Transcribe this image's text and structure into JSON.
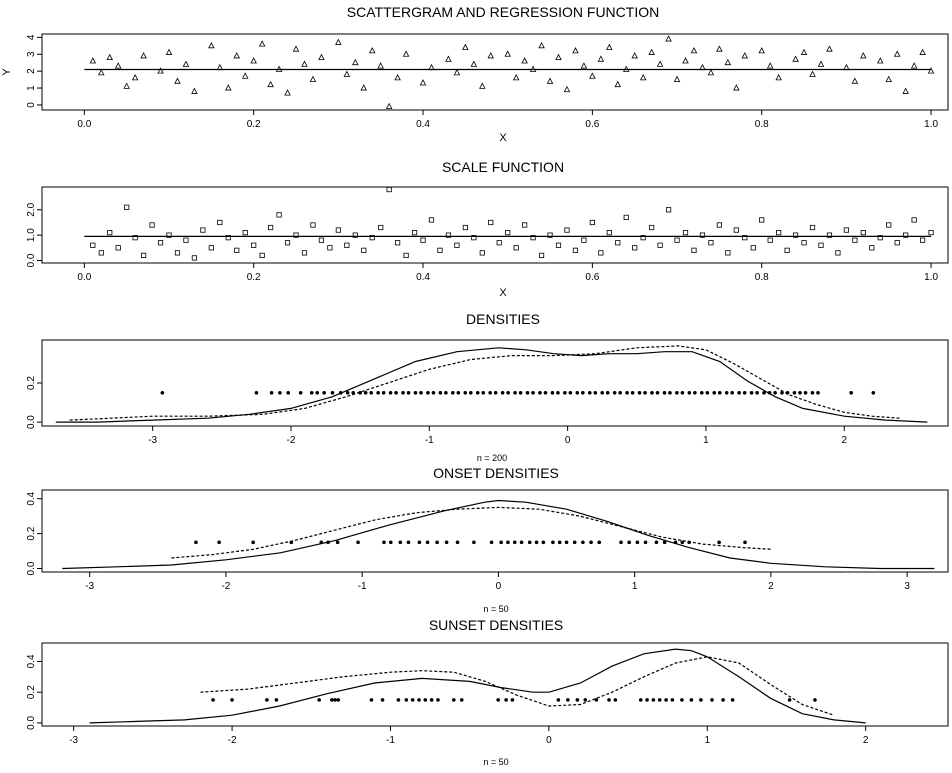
{
  "chart_data": [
    {
      "type": "scatter",
      "title": "SCATTERGRAM AND REGRESSION FUNCTION",
      "xlabel": "X",
      "ylabel": "Y",
      "xlim": [
        -0.05,
        1.02
      ],
      "ylim": [
        -0.3,
        4.2
      ],
      "xticks": [
        "0.0",
        "0.2",
        "0.4",
        "0.6",
        "0.8",
        "1.0"
      ],
      "yticks": [
        "0",
        "1",
        "2",
        "3",
        "4"
      ],
      "marker": "triangle",
      "regression_line": [
        [
          0.0,
          2.1
        ],
        [
          1.0,
          2.1
        ]
      ],
      "points": [
        [
          0.01,
          2.6
        ],
        [
          0.02,
          1.9
        ],
        [
          0.03,
          2.8
        ],
        [
          0.04,
          2.3
        ],
        [
          0.05,
          1.1
        ],
        [
          0.06,
          1.6
        ],
        [
          0.07,
          2.9
        ],
        [
          0.09,
          2.0
        ],
        [
          0.1,
          3.1
        ],
        [
          0.11,
          1.4
        ],
        [
          0.12,
          2.4
        ],
        [
          0.13,
          0.8
        ],
        [
          0.15,
          3.5
        ],
        [
          0.16,
          2.2
        ],
        [
          0.17,
          1.0
        ],
        [
          0.18,
          2.9
        ],
        [
          0.19,
          1.7
        ],
        [
          0.2,
          2.6
        ],
        [
          0.21,
          3.6
        ],
        [
          0.22,
          1.2
        ],
        [
          0.23,
          2.1
        ],
        [
          0.24,
          0.7
        ],
        [
          0.25,
          3.3
        ],
        [
          0.26,
          2.4
        ],
        [
          0.27,
          1.5
        ],
        [
          0.28,
          2.8
        ],
        [
          0.3,
          3.7
        ],
        [
          0.31,
          1.8
        ],
        [
          0.32,
          2.5
        ],
        [
          0.33,
          1.0
        ],
        [
          0.34,
          3.2
        ],
        [
          0.35,
          2.3
        ],
        [
          0.36,
          -0.1
        ],
        [
          0.37,
          1.6
        ],
        [
          0.38,
          3.0
        ],
        [
          0.4,
          1.3
        ],
        [
          0.41,
          2.2
        ],
        [
          0.43,
          2.7
        ],
        [
          0.44,
          1.9
        ],
        [
          0.45,
          3.4
        ],
        [
          0.46,
          2.4
        ],
        [
          0.47,
          1.1
        ],
        [
          0.48,
          2.9
        ],
        [
          0.5,
          3.0
        ],
        [
          0.51,
          1.6
        ],
        [
          0.52,
          2.6
        ],
        [
          0.53,
          2.1
        ],
        [
          0.54,
          3.5
        ],
        [
          0.55,
          1.4
        ],
        [
          0.56,
          2.8
        ],
        [
          0.57,
          0.9
        ],
        [
          0.58,
          3.2
        ],
        [
          0.59,
          2.3
        ],
        [
          0.6,
          1.7
        ],
        [
          0.61,
          2.7
        ],
        [
          0.62,
          3.4
        ],
        [
          0.63,
          1.2
        ],
        [
          0.64,
          2.1
        ],
        [
          0.65,
          2.9
        ],
        [
          0.66,
          1.6
        ],
        [
          0.67,
          3.1
        ],
        [
          0.68,
          2.4
        ],
        [
          0.69,
          3.9
        ],
        [
          0.7,
          1.5
        ],
        [
          0.71,
          2.6
        ],
        [
          0.72,
          3.2
        ],
        [
          0.73,
          2.2
        ],
        [
          0.74,
          1.9
        ],
        [
          0.75,
          3.3
        ],
        [
          0.76,
          2.5
        ],
        [
          0.77,
          1.0
        ],
        [
          0.78,
          2.9
        ],
        [
          0.8,
          3.2
        ],
        [
          0.81,
          2.3
        ],
        [
          0.82,
          1.6
        ],
        [
          0.84,
          2.7
        ],
        [
          0.85,
          3.1
        ],
        [
          0.86,
          1.8
        ],
        [
          0.87,
          2.4
        ],
        [
          0.88,
          3.3
        ],
        [
          0.9,
          2.2
        ],
        [
          0.91,
          1.4
        ],
        [
          0.92,
          2.9
        ],
        [
          0.94,
          2.6
        ],
        [
          0.95,
          1.5
        ],
        [
          0.96,
          3.0
        ],
        [
          0.97,
          0.8
        ],
        [
          0.98,
          2.3
        ],
        [
          0.99,
          3.1
        ],
        [
          1.0,
          2.0
        ]
      ]
    },
    {
      "type": "scatter",
      "title": "SCALE FUNCTION",
      "xlabel": "X",
      "ylabel": "",
      "xlim": [
        -0.05,
        1.02
      ],
      "ylim": [
        -0.1,
        2.9
      ],
      "xticks": [
        "0.0",
        "0.2",
        "0.4",
        "0.6",
        "0.8",
        "1.0"
      ],
      "yticks": [
        "0.0",
        "1.0",
        "2.0"
      ],
      "marker": "square",
      "scale_line": [
        [
          0.0,
          0.95
        ],
        [
          1.0,
          0.95
        ]
      ],
      "points": [
        [
          0.01,
          0.6
        ],
        [
          0.02,
          0.3
        ],
        [
          0.03,
          1.1
        ],
        [
          0.04,
          0.5
        ],
        [
          0.05,
          2.1
        ],
        [
          0.06,
          0.9
        ],
        [
          0.07,
          0.2
        ],
        [
          0.08,
          1.4
        ],
        [
          0.09,
          0.7
        ],
        [
          0.1,
          1.0
        ],
        [
          0.11,
          0.3
        ],
        [
          0.12,
          0.8
        ],
        [
          0.13,
          0.1
        ],
        [
          0.14,
          1.2
        ],
        [
          0.15,
          0.5
        ],
        [
          0.16,
          1.5
        ],
        [
          0.17,
          0.9
        ],
        [
          0.18,
          0.4
        ],
        [
          0.19,
          1.1
        ],
        [
          0.2,
          0.6
        ],
        [
          0.21,
          0.2
        ],
        [
          0.22,
          1.3
        ],
        [
          0.23,
          1.8
        ],
        [
          0.24,
          0.7
        ],
        [
          0.25,
          1.0
        ],
        [
          0.26,
          0.3
        ],
        [
          0.27,
          1.4
        ],
        [
          0.28,
          0.8
        ],
        [
          0.29,
          0.5
        ],
        [
          0.3,
          1.2
        ],
        [
          0.31,
          0.6
        ],
        [
          0.32,
          1.0
        ],
        [
          0.33,
          0.4
        ],
        [
          0.34,
          0.9
        ],
        [
          0.35,
          1.3
        ],
        [
          0.36,
          2.8
        ],
        [
          0.37,
          0.7
        ],
        [
          0.38,
          0.2
        ],
        [
          0.39,
          1.1
        ],
        [
          0.4,
          0.8
        ],
        [
          0.41,
          1.6
        ],
        [
          0.42,
          0.4
        ],
        [
          0.43,
          1.0
        ],
        [
          0.44,
          0.6
        ],
        [
          0.45,
          1.3
        ],
        [
          0.46,
          0.9
        ],
        [
          0.47,
          0.3
        ],
        [
          0.48,
          1.5
        ],
        [
          0.49,
          0.7
        ],
        [
          0.5,
          1.1
        ],
        [
          0.51,
          0.5
        ],
        [
          0.52,
          1.4
        ],
        [
          0.53,
          0.9
        ],
        [
          0.54,
          0.2
        ],
        [
          0.55,
          1.0
        ],
        [
          0.56,
          0.6
        ],
        [
          0.57,
          1.2
        ],
        [
          0.58,
          0.4
        ],
        [
          0.59,
          0.8
        ],
        [
          0.6,
          1.5
        ],
        [
          0.61,
          0.3
        ],
        [
          0.62,
          1.1
        ],
        [
          0.63,
          0.7
        ],
        [
          0.64,
          1.7
        ],
        [
          0.65,
          0.5
        ],
        [
          0.66,
          0.9
        ],
        [
          0.67,
          1.3
        ],
        [
          0.68,
          0.6
        ],
        [
          0.69,
          2.0
        ],
        [
          0.7,
          0.8
        ],
        [
          0.71,
          1.1
        ],
        [
          0.72,
          0.4
        ],
        [
          0.73,
          1.0
        ],
        [
          0.74,
          0.7
        ],
        [
          0.75,
          1.4
        ],
        [
          0.76,
          0.3
        ],
        [
          0.77,
          1.2
        ],
        [
          0.78,
          0.9
        ],
        [
          0.79,
          0.5
        ],
        [
          0.8,
          1.6
        ],
        [
          0.81,
          0.8
        ],
        [
          0.82,
          1.1
        ],
        [
          0.83,
          0.4
        ],
        [
          0.84,
          1.0
        ],
        [
          0.85,
          0.7
        ],
        [
          0.86,
          1.3
        ],
        [
          0.87,
          0.6
        ],
        [
          0.88,
          1.0
        ],
        [
          0.89,
          0.3
        ],
        [
          0.9,
          1.2
        ],
        [
          0.91,
          0.8
        ],
        [
          0.92,
          1.1
        ],
        [
          0.93,
          0.5
        ],
        [
          0.94,
          0.9
        ],
        [
          0.95,
          1.4
        ],
        [
          0.96,
          0.7
        ],
        [
          0.97,
          1.0
        ],
        [
          0.98,
          1.6
        ],
        [
          0.99,
          0.8
        ],
        [
          1.0,
          1.1
        ]
      ]
    },
    {
      "type": "line",
      "title": "DENSITIES",
      "caption": "n = 200",
      "xlim": [
        -3.8,
        2.75
      ],
      "ylim": [
        -0.02,
        0.42
      ],
      "xticks": [
        "-3",
        "-2",
        "-1",
        "0",
        "1",
        "2"
      ],
      "yticks": [
        "0.0",
        "0.2"
      ],
      "point_y": 0.15,
      "series": [
        {
          "style": "solid",
          "x": [
            -3.7,
            -3.4,
            -3.0,
            -2.6,
            -2.3,
            -2.0,
            -1.7,
            -1.4,
            -1.1,
            -0.8,
            -0.5,
            -0.3,
            -0.1,
            0.1,
            0.3,
            0.5,
            0.7,
            0.9,
            1.1,
            1.3,
            1.5,
            1.7,
            2.0,
            2.3,
            2.6
          ],
          "y": [
            0.0,
            0.0,
            0.01,
            0.02,
            0.04,
            0.07,
            0.13,
            0.22,
            0.31,
            0.36,
            0.38,
            0.37,
            0.35,
            0.34,
            0.35,
            0.35,
            0.36,
            0.36,
            0.31,
            0.21,
            0.13,
            0.07,
            0.03,
            0.01,
            0.0
          ]
        },
        {
          "style": "dashed",
          "x": [
            -3.6,
            -3.3,
            -3.0,
            -2.6,
            -2.2,
            -1.9,
            -1.6,
            -1.3,
            -1.0,
            -0.7,
            -0.4,
            -0.1,
            0.2,
            0.5,
            0.8,
            1.0,
            1.2,
            1.4,
            1.6,
            1.8,
            2.0,
            2.2,
            2.4
          ],
          "y": [
            0.01,
            0.02,
            0.03,
            0.03,
            0.04,
            0.07,
            0.13,
            0.2,
            0.27,
            0.32,
            0.34,
            0.34,
            0.35,
            0.38,
            0.39,
            0.37,
            0.3,
            0.22,
            0.14,
            0.09,
            0.05,
            0.03,
            0.02
          ]
        }
      ],
      "points": [
        -2.93,
        -2.25,
        -2.14,
        -2.08,
        -2.02,
        -1.93,
        -1.85,
        -1.81,
        -1.76,
        -1.7,
        -1.64,
        -1.59,
        -1.55,
        -1.5,
        -1.46,
        -1.42,
        -1.37,
        -1.33,
        -1.28,
        -1.24,
        -1.19,
        -1.15,
        -1.1,
        -1.06,
        -1.01,
        -0.97,
        -0.92,
        -0.88,
        -0.83,
        -0.79,
        -0.74,
        -0.7,
        -0.65,
        -0.61,
        -0.56,
        -0.52,
        -0.47,
        -0.43,
        -0.38,
        -0.34,
        -0.29,
        -0.25,
        -0.2,
        -0.16,
        -0.11,
        -0.07,
        -0.02,
        0.02,
        0.07,
        0.11,
        0.16,
        0.2,
        0.25,
        0.29,
        0.34,
        0.38,
        0.43,
        0.47,
        0.52,
        0.56,
        0.61,
        0.65,
        0.7,
        0.74,
        0.79,
        0.83,
        0.88,
        0.92,
        0.97,
        1.01,
        1.06,
        1.1,
        1.15,
        1.19,
        1.24,
        1.28,
        1.33,
        1.37,
        1.42,
        1.46,
        1.5,
        1.55,
        1.59,
        1.64,
        1.68,
        1.72,
        1.77,
        1.81,
        2.05,
        2.21
      ]
    },
    {
      "type": "line",
      "title": "ONSET DENSITIES",
      "caption": "n = 50",
      "xlim": [
        -3.35,
        3.3
      ],
      "ylim": [
        -0.02,
        0.45
      ],
      "xticks": [
        "-3",
        "-2",
        "-1",
        "0",
        "1",
        "2",
        "3"
      ],
      "yticks": [
        "0.0",
        "0.2",
        "0.4"
      ],
      "point_y": 0.15,
      "series": [
        {
          "style": "solid",
          "x": [
            -3.2,
            -2.8,
            -2.4,
            -2.0,
            -1.6,
            -1.2,
            -0.8,
            -0.4,
            -0.1,
            0.0,
            0.2,
            0.5,
            0.8,
            1.1,
            1.4,
            1.7,
            2.0,
            2.4,
            2.8,
            3.2
          ],
          "y": [
            0.0,
            0.01,
            0.02,
            0.05,
            0.09,
            0.16,
            0.25,
            0.33,
            0.38,
            0.39,
            0.38,
            0.34,
            0.27,
            0.19,
            0.12,
            0.06,
            0.03,
            0.01,
            0.0,
            0.0
          ]
        },
        {
          "style": "dashed",
          "x": [
            -2.4,
            -2.1,
            -1.8,
            -1.5,
            -1.2,
            -0.9,
            -0.6,
            -0.3,
            0.0,
            0.3,
            0.6,
            0.9,
            1.2,
            1.5,
            1.8,
            2.0
          ],
          "y": [
            0.06,
            0.08,
            0.11,
            0.16,
            0.22,
            0.28,
            0.32,
            0.34,
            0.35,
            0.34,
            0.3,
            0.24,
            0.18,
            0.14,
            0.12,
            0.11
          ]
        }
      ],
      "points": [
        -2.22,
        -2.05,
        -1.8,
        -1.52,
        -1.3,
        -1.25,
        -1.18,
        -1.03,
        -0.84,
        -0.79,
        -0.72,
        -0.66,
        -0.58,
        -0.52,
        -0.45,
        -0.38,
        -0.3,
        -0.18,
        -0.05,
        0.02,
        0.07,
        0.12,
        0.17,
        0.23,
        0.28,
        0.33,
        0.4,
        0.45,
        0.5,
        0.56,
        0.62,
        0.68,
        0.74,
        0.9,
        0.96,
        1.02,
        1.08,
        1.16,
        1.22,
        1.3,
        1.35,
        1.4,
        1.62,
        1.81
      ]
    },
    {
      "type": "line",
      "title": "SUNSET DENSITIES",
      "caption": "n = 50",
      "xlim": [
        -3.2,
        2.52
      ],
      "ylim": [
        -0.02,
        0.52
      ],
      "xticks": [
        "-3",
        "-2",
        "-1",
        "0",
        "1",
        "2"
      ],
      "yticks": [
        "0.0",
        "0.2",
        "0.4"
      ],
      "point_y": 0.15,
      "series": [
        {
          "style": "solid",
          "x": [
            -2.9,
            -2.6,
            -2.3,
            -2.0,
            -1.7,
            -1.4,
            -1.1,
            -0.8,
            -0.5,
            -0.3,
            -0.1,
            0.0,
            0.2,
            0.4,
            0.6,
            0.8,
            0.9,
            1.0,
            1.2,
            1.4,
            1.6,
            1.8,
            2.0
          ],
          "y": [
            0.0,
            0.01,
            0.02,
            0.05,
            0.11,
            0.19,
            0.26,
            0.29,
            0.27,
            0.23,
            0.2,
            0.2,
            0.26,
            0.37,
            0.45,
            0.48,
            0.47,
            0.43,
            0.3,
            0.16,
            0.06,
            0.02,
            0.0
          ]
        },
        {
          "style": "dashed",
          "x": [
            -2.2,
            -1.9,
            -1.6,
            -1.3,
            -1.0,
            -0.8,
            -0.6,
            -0.4,
            -0.2,
            0.0,
            0.2,
            0.4,
            0.6,
            0.8,
            1.0,
            1.2,
            1.4,
            1.6,
            1.8
          ],
          "y": [
            0.2,
            0.22,
            0.26,
            0.3,
            0.33,
            0.34,
            0.33,
            0.27,
            0.18,
            0.11,
            0.12,
            0.2,
            0.3,
            0.39,
            0.43,
            0.39,
            0.25,
            0.12,
            0.05
          ]
        }
      ],
      "points": [
        -2.12,
        -2.0,
        -1.78,
        -1.72,
        -1.45,
        -1.37,
        -1.35,
        -1.33,
        -1.12,
        -1.05,
        -0.95,
        -0.9,
        -0.86,
        -0.82,
        -0.78,
        -0.74,
        -0.7,
        -0.6,
        -0.55,
        -0.32,
        -0.27,
        -0.23,
        0.06,
        0.12,
        0.18,
        0.23,
        0.3,
        0.38,
        0.42,
        0.58,
        0.62,
        0.66,
        0.7,
        0.74,
        0.78,
        0.84,
        0.9,
        0.96,
        1.03,
        1.1,
        1.16,
        1.52,
        1.68
      ]
    }
  ]
}
